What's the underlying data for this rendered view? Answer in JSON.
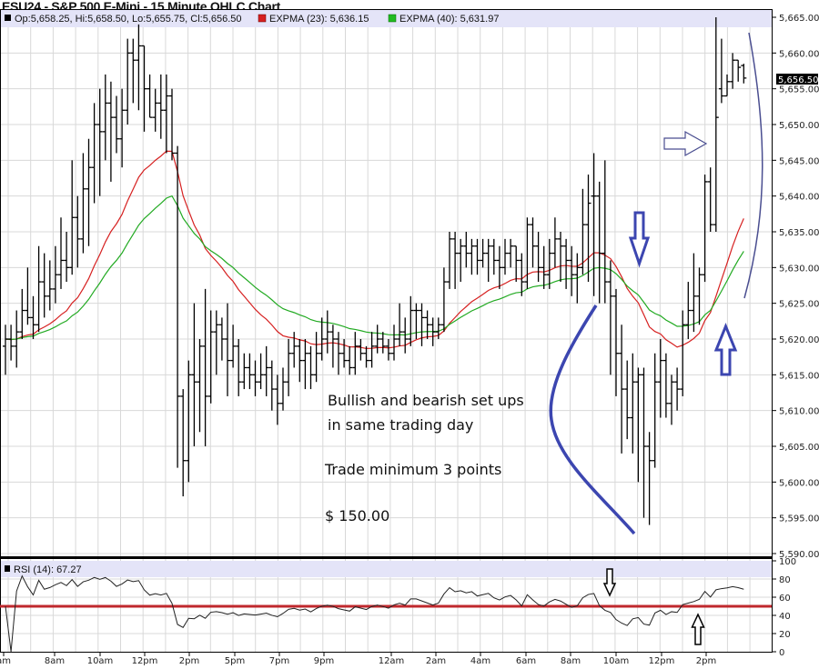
{
  "title": "ESU24 - S&P 500 E-Mini - 15 Minute OHLC Chart",
  "legend": {
    "ohlc": "Op:5,658.25, Hi:5,658.50, Lo:5,655.75, Cl:5,656.50",
    "ema23": "EXPMA (23): 5,636.15",
    "ema40": "EXPMA (40): 5,631.97",
    "rsi": "RSI (14): 67.27"
  },
  "last_price_label": "5,656.50",
  "annotations": {
    "line1": "Bullish and bearish set ups",
    "line2": "in same trading day",
    "line3": "Trade minimum 3 points",
    "line4": "$ 150.00"
  },
  "chart_data": [
    {
      "type": "ohlc",
      "title": "ESU24 - S&P 500 E-Mini - 15 Minute OHLC Chart",
      "ylim": [
        5590,
        5665
      ],
      "yticks": [
        "5,590.00",
        "5,595.00",
        "5,600.00",
        "5,605.00",
        "5,610.00",
        "5,615.00",
        "5,620.00",
        "5,625.00",
        "5,630.00",
        "5,635.00",
        "5,640.00",
        "5,645.00",
        "5,650.00",
        "5,655.00",
        "5,660.00",
        "5,665.00"
      ],
      "xticks": [
        "am",
        "8am",
        "10am",
        "12pm",
        "2pm",
        "5pm",
        "7pm",
        "9pm",
        "12am",
        "2am",
        "4am",
        "6am",
        "8am",
        "10am",
        "12pm",
        "2pm"
      ],
      "grid": true,
      "colors": {
        "bars": "#000000",
        "ema23": "#d62020",
        "ema40": "#22aa22",
        "rsi_mid": "#c0282d"
      },
      "series": [
        {
          "name": "EXPMA (23)",
          "period": 23
        },
        {
          "name": "EXPMA (40)",
          "period": 40
        }
      ],
      "bars": [
        [
          5619,
          5622,
          5615,
          5620
        ],
        [
          5620,
          5622,
          5617,
          5619
        ],
        [
          5619,
          5624,
          5616,
          5621
        ],
        [
          5621,
          5627,
          5620,
          5624
        ],
        [
          5624,
          5630,
          5622,
          5623
        ],
        [
          5623,
          5626,
          5620,
          5622
        ],
        [
          5622,
          5633,
          5621,
          5628
        ],
        [
          5628,
          5632,
          5623,
          5626
        ],
        [
          5626,
          5631,
          5624,
          5627
        ],
        [
          5627,
          5633,
          5625,
          5629
        ],
        [
          5629,
          5637,
          5627,
          5631
        ],
        [
          5631,
          5635,
          5628,
          5630
        ],
        [
          5630,
          5645,
          5629,
          5637
        ],
        [
          5637,
          5640,
          5630,
          5634
        ],
        [
          5634,
          5646,
          5632,
          5641
        ],
        [
          5641,
          5648,
          5633,
          5644
        ],
        [
          5644,
          5653,
          5639,
          5650
        ],
        [
          5650,
          5655,
          5640,
          5649
        ],
        [
          5649,
          5657,
          5645,
          5653
        ],
        [
          5653,
          5656,
          5642,
          5651
        ],
        [
          5651,
          5654,
          5646,
          5648
        ],
        [
          5648,
          5655,
          5644,
          5652
        ],
        [
          5652,
          5662,
          5650,
          5660
        ],
        [
          5660,
          5662,
          5653,
          5659
        ],
        [
          5659,
          5664,
          5652,
          5661
        ],
        [
          5661,
          5661,
          5649,
          5655
        ],
        [
          5655,
          5657,
          5651,
          5651
        ],
        [
          5651,
          5655,
          5649,
          5653
        ],
        [
          5653,
          5657,
          5648,
          5652
        ],
        [
          5652,
          5657,
          5646,
          5654
        ],
        [
          5654,
          5655,
          5645,
          5646
        ],
        [
          5646,
          5647,
          5602,
          5612
        ],
        [
          5612,
          5613,
          5598,
          5603
        ],
        [
          5603,
          5617,
          5600,
          5615
        ],
        [
          5615,
          5625,
          5605,
          5614
        ],
        [
          5614,
          5620,
          5607,
          5619
        ],
        [
          5619,
          5627,
          5605,
          5612
        ],
        [
          5612,
          5624,
          5611,
          5621
        ],
        [
          5621,
          5624,
          5615,
          5622
        ],
        [
          5622,
          5623,
          5617,
          5620
        ],
        [
          5620,
          5625,
          5612,
          5617
        ],
        [
          5617,
          5622,
          5616,
          5619
        ],
        [
          5619,
          5620,
          5612,
          5614
        ],
        [
          5614,
          5618,
          5613,
          5616
        ],
        [
          5616,
          5618,
          5613,
          5615
        ],
        [
          5615,
          5617,
          5612,
          5614
        ],
        [
          5614,
          5618,
          5613,
          5615
        ],
        [
          5615,
          5619,
          5612,
          5616
        ],
        [
          5616,
          5617,
          5610,
          5613
        ],
        [
          5613,
          5615,
          5608,
          5611
        ],
        [
          5611,
          5616,
          5610,
          5614
        ],
        [
          5614,
          5620,
          5612,
          5618
        ],
        [
          5618,
          5621,
          5616,
          5619
        ],
        [
          5619,
          5620,
          5614,
          5617
        ],
        [
          5617,
          5620,
          5613,
          5618
        ],
        [
          5618,
          5619,
          5613,
          5615
        ],
        [
          5615,
          5621,
          5614,
          5618
        ],
        [
          5618,
          5623,
          5617,
          5620
        ],
        [
          5620,
          5624,
          5618,
          5621
        ],
        [
          5621,
          5622,
          5616,
          5620
        ],
        [
          5620,
          5621,
          5615,
          5618
        ],
        [
          5618,
          5620,
          5616,
          5617
        ],
        [
          5617,
          5619,
          5615,
          5616
        ],
        [
          5616,
          5621,
          5615,
          5619
        ],
        [
          5619,
          5620,
          5617,
          5618
        ],
        [
          5618,
          5619,
          5616,
          5617
        ],
        [
          5617,
          5621,
          5616,
          5619
        ],
        [
          5619,
          5622,
          5618,
          5620
        ],
        [
          5620,
          5621,
          5618,
          5619
        ],
        [
          5619,
          5620,
          5617,
          5618
        ],
        [
          5618,
          5622,
          5617,
          5620
        ],
        [
          5620,
          5625,
          5619,
          5621
        ],
        [
          5621,
          5623,
          5618,
          5620
        ],
        [
          5620,
          5626,
          5619,
          5624
        ],
        [
          5624,
          5625,
          5620,
          5624
        ],
        [
          5624,
          5625,
          5619,
          5623
        ],
        [
          5623,
          5624,
          5620,
          5622
        ],
        [
          5622,
          5623,
          5619,
          5621
        ],
        [
          5621,
          5623,
          5620,
          5622
        ],
        [
          5622,
          5630,
          5621,
          5628
        ],
        [
          5628,
          5635,
          5627,
          5634
        ],
        [
          5634,
          5635,
          5627,
          5632
        ],
        [
          5632,
          5634,
          5628,
          5633
        ],
        [
          5633,
          5635,
          5630,
          5632
        ],
        [
          5632,
          5634,
          5629,
          5633
        ],
        [
          5633,
          5634,
          5629,
          5631
        ],
        [
          5631,
          5634,
          5630,
          5632
        ],
        [
          5632,
          5634,
          5628,
          5633
        ],
        [
          5633,
          5634,
          5629,
          5631
        ],
        [
          5631,
          5633,
          5627,
          5630
        ],
        [
          5630,
          5634,
          5629,
          5632
        ],
        [
          5632,
          5634,
          5630,
          5633
        ],
        [
          5633,
          5633,
          5628,
          5631
        ],
        [
          5631,
          5632,
          5626,
          5628
        ],
        [
          5628,
          5637,
          5627,
          5636
        ],
        [
          5636,
          5637,
          5630,
          5633
        ],
        [
          5633,
          5635,
          5628,
          5630
        ],
        [
          5630,
          5633,
          5627,
          5629
        ],
        [
          5629,
          5634,
          5627,
          5632
        ],
        [
          5632,
          5637,
          5630,
          5634
        ],
        [
          5634,
          5635,
          5628,
          5633
        ],
        [
          5633,
          5634,
          5627,
          5631
        ],
        [
          5631,
          5633,
          5626,
          5629
        ],
        [
          5629,
          5632,
          5625,
          5630
        ],
        [
          5630,
          5641,
          5629,
          5636
        ],
        [
          5636,
          5643,
          5628,
          5639
        ],
        [
          5640,
          5646,
          5626,
          5640
        ],
        [
          5640,
          5642,
          5625,
          5632
        ],
        [
          5632,
          5645,
          5625,
          5628
        ],
        [
          5628,
          5631,
          5615,
          5626
        ],
        [
          5626,
          5627,
          5612,
          5618
        ],
        [
          5618,
          5622,
          5604,
          5613
        ],
        [
          5613,
          5617,
          5606,
          5609
        ],
        [
          5609,
          5618,
          5604,
          5614
        ],
        [
          5614,
          5616,
          5600,
          5615
        ],
        [
          5615,
          5616,
          5595,
          5605
        ],
        [
          5605,
          5607,
          5594,
          5603
        ],
        [
          5603,
          5618,
          5602,
          5614
        ],
        [
          5614,
          5620,
          5609,
          5617
        ],
        [
          5617,
          5618,
          5609,
          5611
        ],
        [
          5611,
          5615,
          5608,
          5614
        ],
        [
          5614,
          5616,
          5610,
          5613
        ],
        [
          5613,
          5624,
          5612,
          5622
        ],
        [
          5622,
          5628,
          5620,
          5624
        ],
        [
          5624,
          5632,
          5621,
          5626
        ],
        [
          5626,
          5630,
          5622,
          5629
        ],
        [
          5629,
          5643,
          5628,
          5642
        ],
        [
          5642,
          5644,
          5635,
          5636
        ],
        [
          5636,
          5665,
          5635,
          5651
        ],
        [
          5655,
          5662,
          5653,
          5654
        ],
        [
          5654,
          5657,
          5654,
          5656
        ],
        [
          5656,
          5660,
          5655,
          5659
        ],
        [
          5659,
          5659,
          5656,
          5658
        ],
        [
          5658.25,
          5658.5,
          5655.75,
          5656.5
        ]
      ]
    },
    {
      "type": "line",
      "title": "RSI (14): 67.27",
      "ylim": [
        0,
        100
      ],
      "yticks": [
        "0",
        "20",
        "40",
        "60",
        "80",
        "100"
      ],
      "period": 14,
      "reference_line": 50,
      "grid": true
    }
  ]
}
